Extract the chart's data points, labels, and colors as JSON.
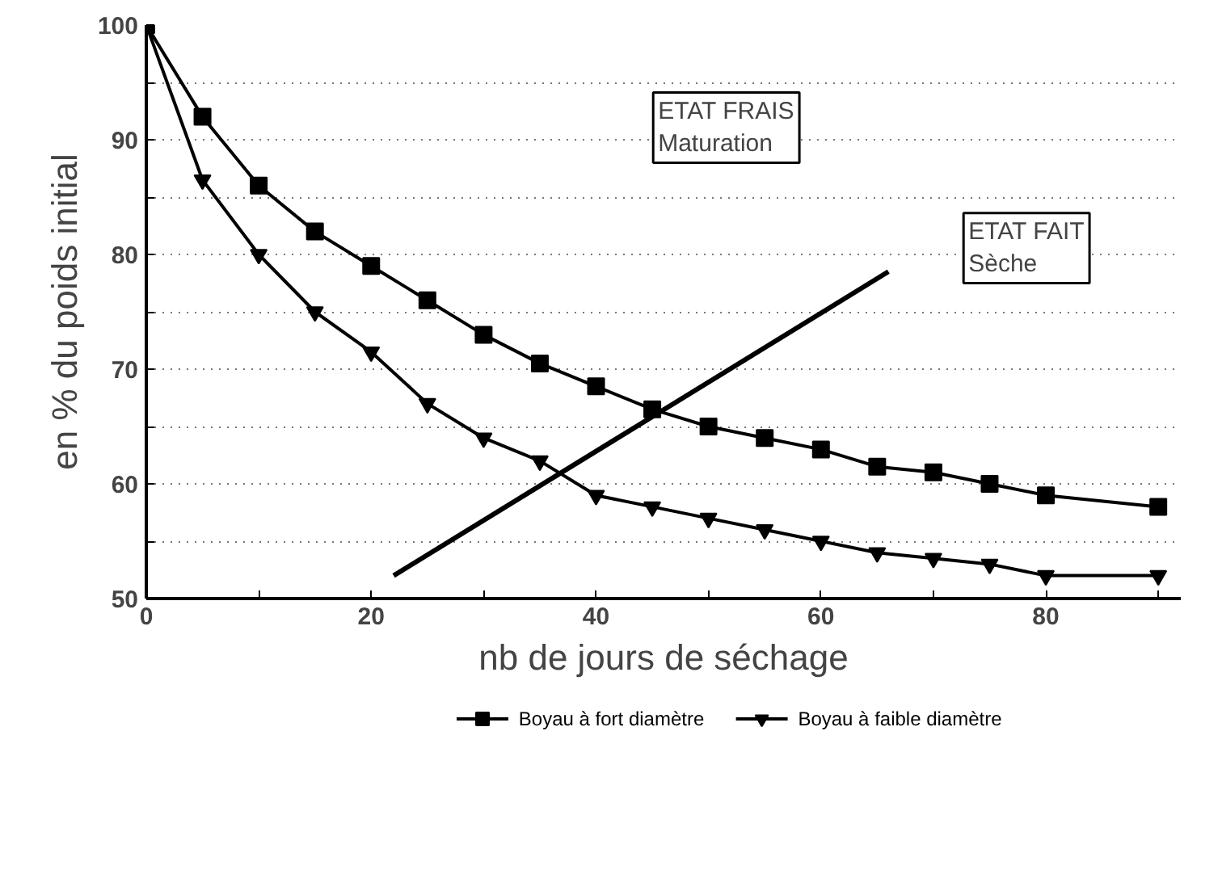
{
  "chart_data": {
    "type": "line",
    "xlabel": "nb de jours de séchage",
    "ylabel": "en % du poids initial",
    "xlim": [
      0,
      92
    ],
    "ylim": [
      50,
      100
    ],
    "xticks": [
      0,
      {
        "value": 10,
        "label": null
      },
      20,
      {
        "value": 30,
        "label": null
      },
      40,
      {
        "value": 50,
        "label": null
      },
      60,
      {
        "value": 70,
        "label": null
      },
      80,
      {
        "value": 90,
        "label": null
      }
    ],
    "yticks": [
      50,
      {
        "value": 55,
        "label": null
      },
      60,
      {
        "value": 65,
        "label": null
      },
      70,
      {
        "value": 75,
        "label": null
      },
      80,
      {
        "value": 85,
        "label": null
      },
      90,
      {
        "value": 95,
        "label": null
      },
      100
    ],
    "grid": "y",
    "legend": "bottom",
    "line_style": "solid",
    "series": [
      {
        "name": "Boyau à fort diamètre",
        "color": "#000000",
        "marker": "square",
        "x": [
          0,
          5,
          10,
          15,
          20,
          25,
          30,
          35,
          40,
          45,
          50,
          55,
          60,
          65,
          70,
          75,
          80,
          90
        ],
        "values": [
          100,
          92,
          86,
          82,
          79,
          76,
          73,
          70.5,
          68.5,
          66.5,
          65,
          64,
          63,
          61.5,
          61,
          60,
          59,
          58
        ]
      },
      {
        "name": "Boyau à faible diamètre",
        "color": "#000000",
        "marker": "triangle",
        "x": [
          0,
          5,
          10,
          15,
          20,
          25,
          30,
          35,
          40,
          45,
          50,
          55,
          60,
          65,
          70,
          75,
          80,
          90
        ],
        "values": [
          100,
          86.5,
          80,
          75,
          71.5,
          67,
          64,
          62,
          59,
          58,
          57,
          56,
          55,
          54,
          53.5,
          53,
          52,
          52
        ]
      },
      {
        "type": "line",
        "color": "#000000",
        "marker": "none",
        "x": [
          22,
          66
        ],
        "values": [
          52,
          78.5
        ]
      }
    ],
    "annotations": [
      "ETAT FRAIS\nMaturation",
      "ETAT FAIT\nSèche"
    ]
  }
}
